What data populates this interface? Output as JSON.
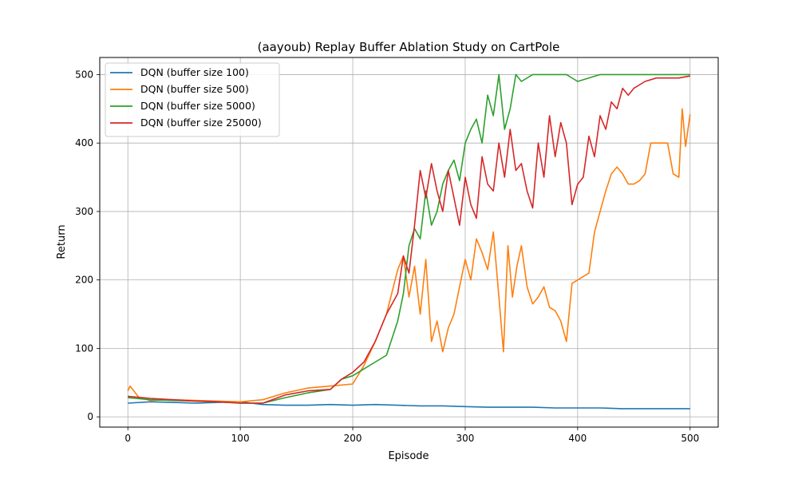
{
  "chart_data": {
    "type": "line",
    "title": "(aayoub) Replay Buffer Ablation Study on CartPole",
    "xlabel": "Episode",
    "ylabel": "Return",
    "xlim": [
      -25,
      525
    ],
    "ylim": [
      -15,
      525
    ],
    "xticks": [
      0,
      100,
      200,
      300,
      400,
      500
    ],
    "yticks": [
      0,
      100,
      200,
      300,
      400,
      500
    ],
    "grid": true,
    "legend_position": "upper-left",
    "series": [
      {
        "name": "DQN (buffer size 100)",
        "color": "#1f77b4",
        "x": [
          0,
          20,
          40,
          60,
          80,
          100,
          120,
          140,
          160,
          180,
          200,
          220,
          240,
          260,
          280,
          300,
          320,
          340,
          360,
          380,
          400,
          420,
          440,
          460,
          480,
          500
        ],
        "y": [
          20,
          22,
          21,
          20,
          21,
          22,
          18,
          17,
          17,
          18,
          17,
          18,
          17,
          16,
          16,
          15,
          14,
          14,
          14,
          13,
          13,
          13,
          12,
          12,
          12,
          12
        ]
      },
      {
        "name": "DQN (buffer size 500)",
        "color": "#ff7f0e",
        "x": [
          0,
          2,
          10,
          20,
          40,
          60,
          80,
          100,
          120,
          140,
          160,
          180,
          200,
          210,
          220,
          230,
          240,
          245,
          250,
          255,
          260,
          265,
          270,
          275,
          280,
          285,
          290,
          295,
          300,
          305,
          310,
          315,
          320,
          325,
          330,
          334,
          338,
          342,
          346,
          350,
          355,
          360,
          365,
          370,
          375,
          380,
          385,
          390,
          395,
          400,
          405,
          410,
          415,
          420,
          425,
          430,
          435,
          440,
          445,
          450,
          455,
          460,
          465,
          470,
          475,
          480,
          485,
          490,
          493,
          496,
          500
        ],
        "y": [
          38,
          45,
          28,
          24,
          25,
          24,
          23,
          22,
          25,
          35,
          42,
          45,
          48,
          75,
          110,
          150,
          215,
          235,
          175,
          220,
          150,
          230,
          110,
          140,
          95,
          130,
          150,
          190,
          230,
          200,
          260,
          240,
          215,
          270,
          175,
          95,
          250,
          175,
          220,
          250,
          190,
          165,
          175,
          190,
          160,
          155,
          140,
          110,
          195,
          200,
          205,
          210,
          270,
          300,
          330,
          355,
          365,
          355,
          340,
          340,
          345,
          355,
          400,
          400,
          400,
          400,
          355,
          350,
          450,
          395,
          442
        ]
      },
      {
        "name": "DQN (buffer size 5000)",
        "color": "#2ca02c",
        "x": [
          0,
          20,
          40,
          60,
          80,
          100,
          120,
          140,
          160,
          180,
          190,
          200,
          210,
          220,
          230,
          240,
          245,
          250,
          255,
          260,
          265,
          270,
          275,
          280,
          285,
          290,
          295,
          300,
          305,
          310,
          315,
          320,
          325,
          330,
          335,
          340,
          345,
          350,
          360,
          370,
          380,
          390,
          400,
          420,
          440,
          460,
          480,
          500
        ],
        "y": [
          28,
          25,
          24,
          23,
          22,
          20,
          20,
          28,
          35,
          40,
          55,
          60,
          70,
          80,
          90,
          140,
          180,
          250,
          275,
          260,
          330,
          280,
          300,
          340,
          360,
          375,
          345,
          400,
          420,
          435,
          400,
          470,
          440,
          500,
          420,
          450,
          500,
          490,
          500,
          500,
          500,
          500,
          490,
          500,
          500,
          500,
          500,
          500
        ]
      },
      {
        "name": "DQN (buffer size 25000)",
        "color": "#d62728",
        "x": [
          0,
          20,
          40,
          60,
          80,
          100,
          120,
          140,
          160,
          180,
          190,
          200,
          210,
          220,
          230,
          240,
          245,
          250,
          255,
          260,
          265,
          270,
          275,
          280,
          285,
          290,
          295,
          300,
          305,
          310,
          315,
          320,
          325,
          330,
          335,
          340,
          345,
          350,
          355,
          360,
          365,
          370,
          375,
          380,
          385,
          390,
          395,
          400,
          405,
          410,
          415,
          420,
          425,
          430,
          435,
          440,
          445,
          450,
          460,
          470,
          480,
          490,
          500
        ],
        "y": [
          30,
          27,
          25,
          23,
          22,
          20,
          20,
          32,
          38,
          40,
          55,
          65,
          80,
          110,
          150,
          180,
          235,
          210,
          280,
          360,
          320,
          370,
          330,
          300,
          360,
          320,
          280,
          350,
          310,
          290,
          380,
          340,
          330,
          400,
          350,
          420,
          360,
          370,
          330,
          305,
          400,
          350,
          440,
          380,
          430,
          400,
          310,
          340,
          350,
          410,
          380,
          440,
          420,
          460,
          450,
          480,
          470,
          480,
          490,
          495,
          495,
          495,
          498
        ]
      }
    ]
  }
}
